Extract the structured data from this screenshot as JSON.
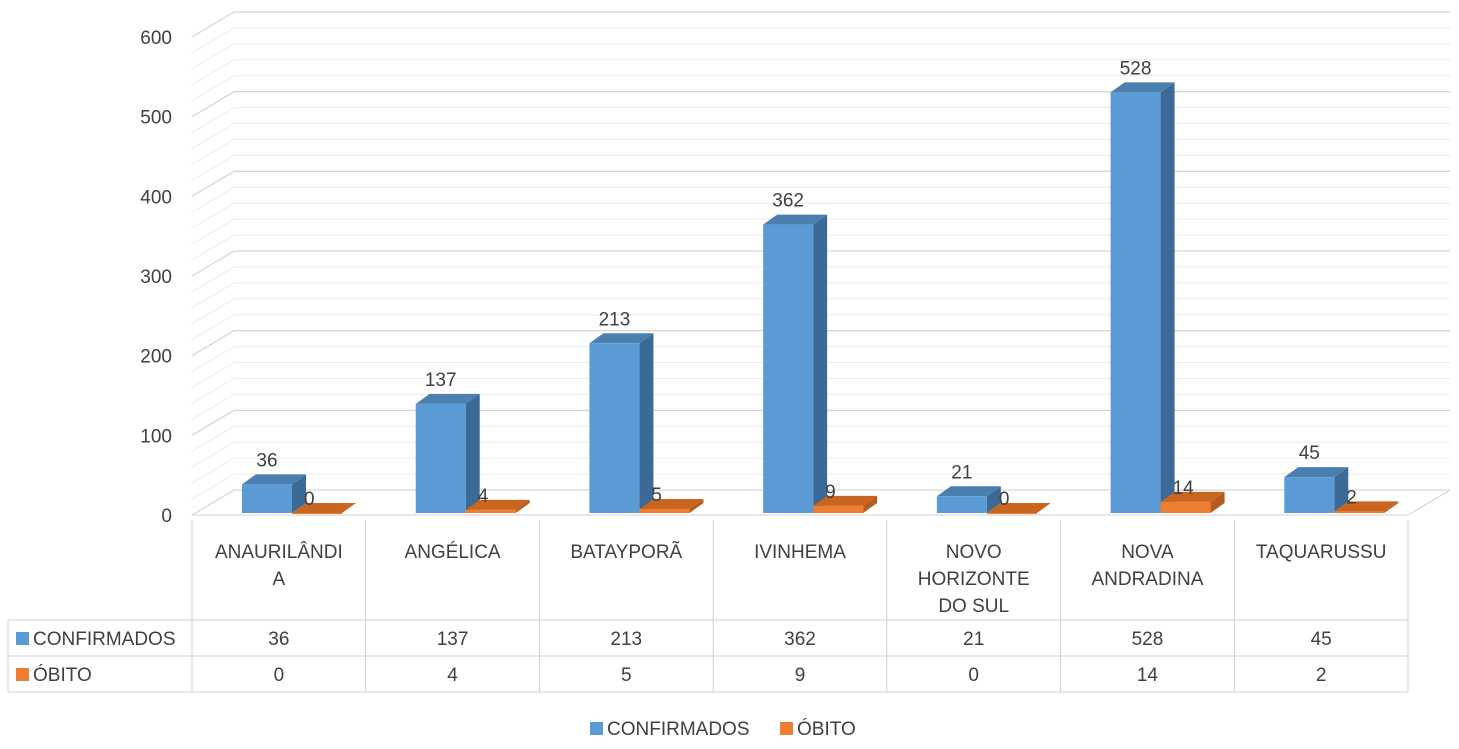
{
  "chart_data": {
    "type": "bar",
    "categories": [
      [
        "ANAURILÂNDI",
        "A"
      ],
      [
        "ANGÉLICA"
      ],
      [
        "BATAYPORÃ"
      ],
      [
        "IVINHEMA"
      ],
      [
        "NOVO",
        "HORIZONTE",
        "DO SUL"
      ],
      [
        "NOVA",
        "ANDRADINA"
      ],
      [
        "TAQUARUSSU"
      ]
    ],
    "series": [
      {
        "name": "CONFIRMADOS",
        "values": [
          36,
          137,
          213,
          362,
          21,
          528,
          45
        ],
        "color": "#5B9BD5",
        "side_color": "#3B6A96",
        "top_color": "#4A7FB0"
      },
      {
        "name": "ÓBITO",
        "values": [
          0,
          4,
          5,
          9,
          0,
          14,
          2
        ],
        "color": "#ED7D31",
        "side_color": "#B85A1C",
        "top_color": "#C9651F"
      }
    ],
    "ylim": [
      0,
      600
    ],
    "yticks": [
      0,
      100,
      200,
      300,
      400,
      500,
      600
    ],
    "grid": true,
    "data_table": true,
    "legend_position": "bottom",
    "title": "",
    "xlabel": "",
    "ylabel": ""
  }
}
